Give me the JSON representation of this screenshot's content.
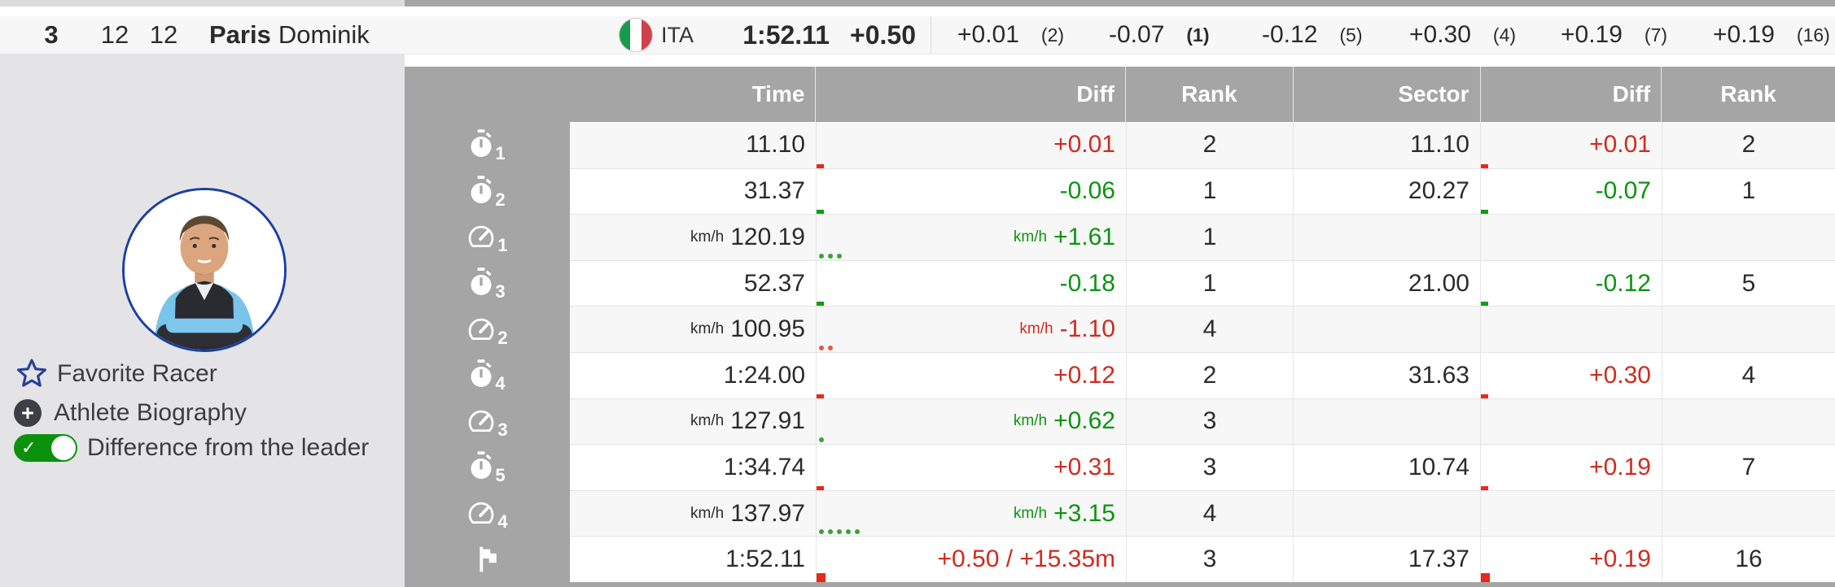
{
  "header": {
    "bib": "3",
    "rank_overall": "12",
    "rank_secondary": "12",
    "last_name": "Paris",
    "first_name": "Dominik",
    "country_code": "ITA",
    "total_time": "1:52.11",
    "total_diff": "+0.50",
    "sector_diffs": [
      {
        "diff": "+0.01",
        "rank": "(2)",
        "rank_bold": false
      },
      {
        "diff": "-0.07",
        "rank": "(1)",
        "rank_bold": true
      },
      {
        "diff": "-0.12",
        "rank": "(5)",
        "rank_bold": false
      },
      {
        "diff": "+0.30",
        "rank": "(4)",
        "rank_bold": false
      },
      {
        "diff": "+0.19",
        "rank": "(7)",
        "rank_bold": false
      },
      {
        "diff": "+0.19",
        "rank": "(16)",
        "rank_bold": false
      }
    ]
  },
  "sidebar": {
    "favorite_label": "Favorite Racer",
    "biography_label": "Athlete Biography",
    "toggle_label": "Difference from the leader",
    "toggle_on": true,
    "plus_glyph": "+",
    "check_glyph": "✓"
  },
  "table": {
    "columns": [
      "Time",
      "Diff",
      "Rank",
      "Sector",
      "Diff",
      "Rank"
    ],
    "rows": [
      {
        "icon": "stopwatch",
        "sub": "1",
        "time": "11.10",
        "time_unit": "",
        "diff": "+0.01",
        "diff_unit": "",
        "diff_color": "red",
        "rank": "2",
        "sector": "11.10",
        "sector_diff": "+0.01",
        "sector_diff_color": "red",
        "sector_rank": "2",
        "indicator": "tick",
        "dots": 0
      },
      {
        "icon": "stopwatch",
        "sub": "2",
        "time": "31.37",
        "time_unit": "",
        "diff": "-0.06",
        "diff_unit": "",
        "diff_color": "green",
        "rank": "1",
        "sector": "20.27",
        "sector_diff": "-0.07",
        "sector_diff_color": "green",
        "sector_rank": "1",
        "indicator": "tick",
        "dots": 0
      },
      {
        "icon": "speed",
        "sub": "1",
        "time": "120.19",
        "time_unit": "km/h",
        "diff": "+1.61",
        "diff_unit": "km/h",
        "diff_color": "green",
        "rank": "1",
        "sector": "",
        "sector_diff": "",
        "sector_diff_color": "",
        "sector_rank": "",
        "indicator": "dots",
        "dots": 3
      },
      {
        "icon": "stopwatch",
        "sub": "3",
        "time": "52.37",
        "time_unit": "",
        "diff": "-0.18",
        "diff_unit": "",
        "diff_color": "green",
        "rank": "1",
        "sector": "21.00",
        "sector_diff": "-0.12",
        "sector_diff_color": "green",
        "sector_rank": "5",
        "indicator": "tick",
        "dots": 0
      },
      {
        "icon": "speed",
        "sub": "2",
        "time": "100.95",
        "time_unit": "km/h",
        "diff": "-1.10",
        "diff_unit": "km/h",
        "diff_color": "red",
        "rank": "4",
        "sector": "",
        "sector_diff": "",
        "sector_diff_color": "",
        "sector_rank": "",
        "indicator": "dots",
        "dots": 2
      },
      {
        "icon": "stopwatch",
        "sub": "4",
        "time": "1:24.00",
        "time_unit": "",
        "diff": "+0.12",
        "diff_unit": "",
        "diff_color": "red",
        "rank": "2",
        "sector": "31.63",
        "sector_diff": "+0.30",
        "sector_diff_color": "red",
        "sector_rank": "4",
        "indicator": "tick",
        "dots": 0
      },
      {
        "icon": "speed",
        "sub": "3",
        "time": "127.91",
        "time_unit": "km/h",
        "diff": "+0.62",
        "diff_unit": "km/h",
        "diff_color": "green",
        "rank": "3",
        "sector": "",
        "sector_diff": "",
        "sector_diff_color": "",
        "sector_rank": "",
        "indicator": "dots",
        "dots": 1
      },
      {
        "icon": "stopwatch",
        "sub": "5",
        "time": "1:34.74",
        "time_unit": "",
        "diff": "+0.31",
        "diff_unit": "",
        "diff_color": "red",
        "rank": "3",
        "sector": "10.74",
        "sector_diff": "+0.19",
        "sector_diff_color": "red",
        "sector_rank": "7",
        "indicator": "tick",
        "dots": 0
      },
      {
        "icon": "speed",
        "sub": "4",
        "time": "137.97",
        "time_unit": "km/h",
        "diff": "+3.15",
        "diff_unit": "km/h",
        "diff_color": "green",
        "rank": "4",
        "sector": "",
        "sector_diff": "",
        "sector_diff_color": "",
        "sector_rank": "",
        "indicator": "dots",
        "dots": 5
      },
      {
        "icon": "flag",
        "sub": "",
        "time": "1:52.11",
        "time_unit": "",
        "diff": "+0.50 / +15.35m",
        "diff_unit": "",
        "diff_color": "red",
        "rank": "3",
        "sector": "17.37",
        "sector_diff": "+0.19",
        "sector_diff_color": "red",
        "sector_rank": "16",
        "indicator": "tick-large",
        "dots": 0
      }
    ]
  },
  "colors": {
    "positive_diff_red": "#cf2b1f",
    "negative_diff_green": "#0b9410",
    "band_gray": "#a5a5a5",
    "panel_gray": "#e4e4e6",
    "favorite_star_blue": "#26409a",
    "toggle_green": "#0b910b",
    "avatar_border_blue": "#1a3fa2",
    "flag_green": "#169b4e",
    "flag_red": "#d0414c"
  }
}
